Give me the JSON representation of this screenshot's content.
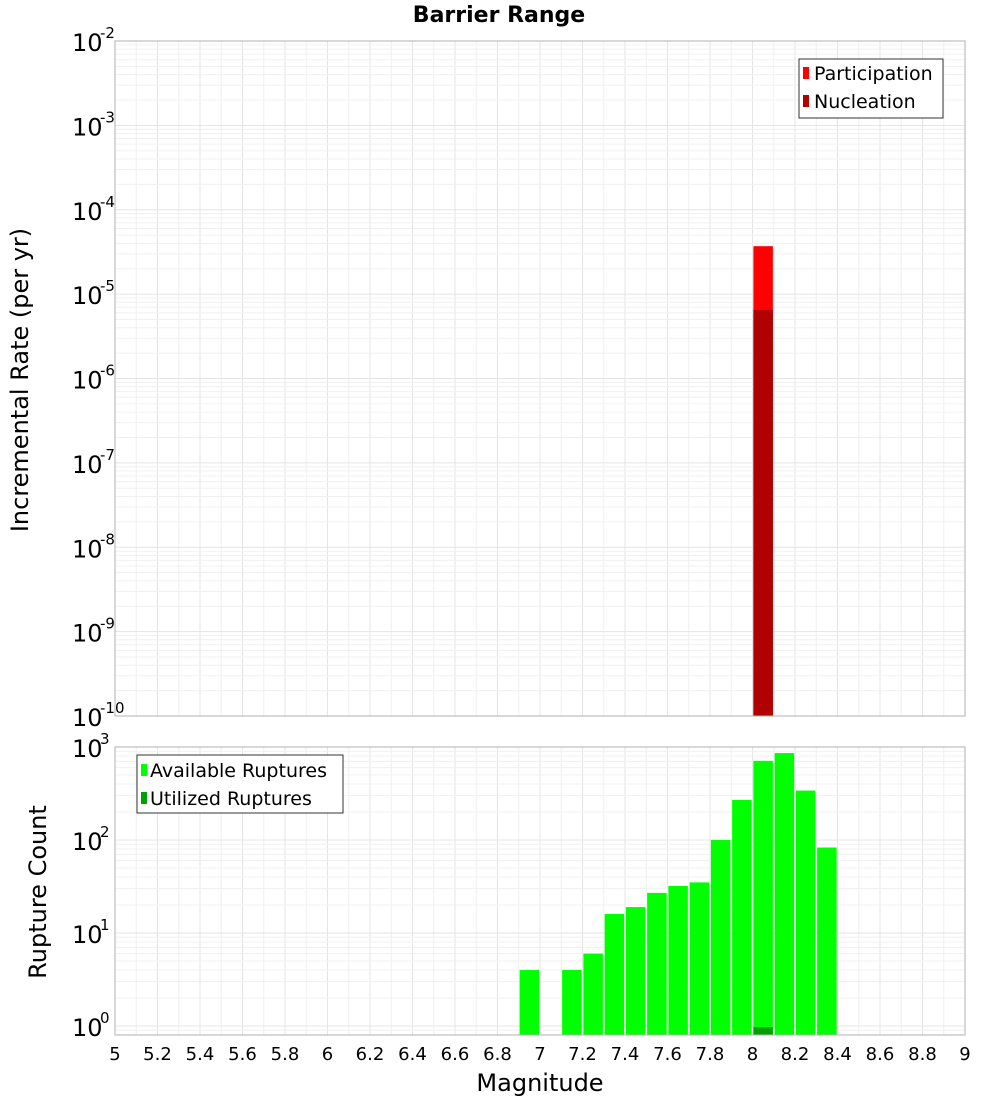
{
  "chart_data": [
    {
      "type": "bar",
      "title": "Barrier Range",
      "xlabel": "",
      "ylabel": "Incremental Rate (per yr)",
      "yscale": "log",
      "ylim": [
        1e-10,
        0.01
      ],
      "xlim": [
        5,
        9
      ],
      "y_ticks": [
        {
          "base": "10",
          "exp": "-10"
        },
        {
          "base": "10",
          "exp": "-9"
        },
        {
          "base": "10",
          "exp": "-8"
        },
        {
          "base": "10",
          "exp": "-7"
        },
        {
          "base": "10",
          "exp": "-6"
        },
        {
          "base": "10",
          "exp": "-5"
        },
        {
          "base": "10",
          "exp": "-4"
        },
        {
          "base": "10",
          "exp": "-3"
        },
        {
          "base": "10",
          "exp": "-2"
        }
      ],
      "legend": "top-right",
      "series": [
        {
          "name": "Participation",
          "color": "#ff0000",
          "x": [
            8.05
          ],
          "values": [
            3.7e-05
          ]
        },
        {
          "name": "Nucleation",
          "color": "#b00000",
          "x": [
            8.05
          ],
          "values": [
            6.5e-06
          ]
        }
      ]
    },
    {
      "type": "bar",
      "title": "",
      "xlabel": "Magnitude",
      "ylabel": "Rupture Count",
      "yscale": "log",
      "ylim": [
        0.8,
        1000
      ],
      "xlim": [
        5,
        9
      ],
      "x_ticks": [
        "5",
        "5.2",
        "5.4",
        "5.6",
        "5.8",
        "6",
        "6.2",
        "6.4",
        "6.6",
        "6.8",
        "7",
        "7.2",
        "7.4",
        "7.6",
        "7.8",
        "8",
        "8.2",
        "8.4",
        "8.6",
        "8.8",
        "9"
      ],
      "y_ticks": [
        {
          "base": "10",
          "exp": "0"
        },
        {
          "base": "10",
          "exp": "1"
        },
        {
          "base": "10",
          "exp": "2"
        },
        {
          "base": "10",
          "exp": "3"
        }
      ],
      "legend": "top-left",
      "series": [
        {
          "name": "Available Ruptures",
          "color": "#00ff00",
          "x": [
            6.95,
            7.15,
            7.25,
            7.35,
            7.45,
            7.55,
            7.65,
            7.75,
            7.85,
            7.95,
            8.05,
            8.15,
            8.25,
            8.35
          ],
          "values": [
            4,
            4,
            6,
            16,
            19,
            27,
            32,
            35,
            100,
            270,
            710,
            860,
            340,
            83
          ]
        },
        {
          "name": "Utilized Ruptures",
          "color": "#00a000",
          "x": [
            8.05
          ],
          "values": [
            1
          ]
        }
      ]
    }
  ]
}
